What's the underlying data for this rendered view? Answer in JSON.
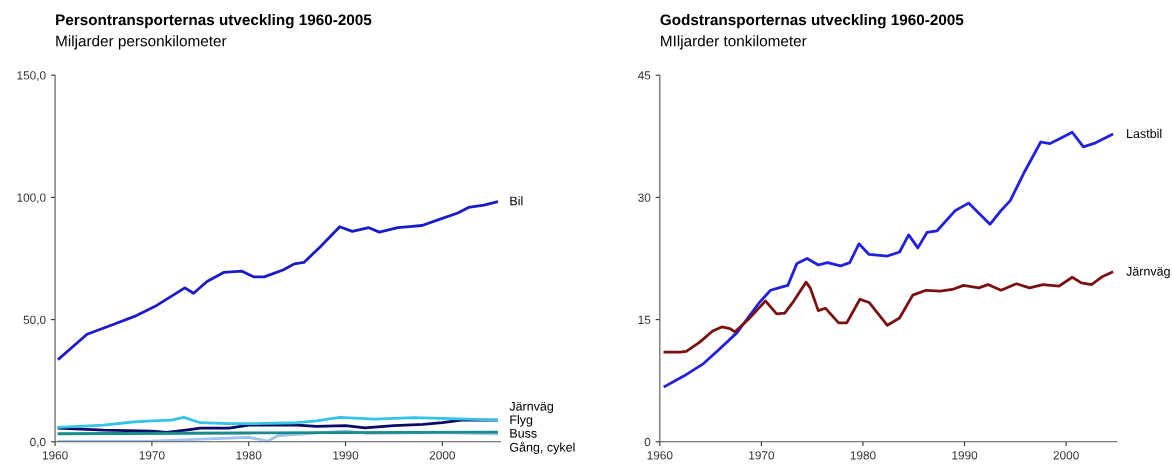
{
  "chart_data": [
    {
      "type": "line",
      "title": "Persontransporternas utveckling 1960-2005",
      "subtitle": "Miljarder personkilometer",
      "xlim": [
        1960,
        2006
      ],
      "xticks": [
        1960,
        1970,
        1980,
        1990,
        2000
      ],
      "ylim": [
        0,
        150
      ],
      "yticks": [
        {
          "value": 0,
          "label": "0,0"
        },
        {
          "value": 50,
          "label": "50,0"
        },
        {
          "value": 100,
          "label": "100,0"
        },
        {
          "value": 150,
          "label": "150,0"
        }
      ],
      "grid": false,
      "legend": false,
      "marker": "none",
      "line_style": "solid",
      "series": [
        {
          "name": "Bil",
          "color": "#1a1ac8",
          "x": [
            1960.4,
            1963.3,
            1966,
            1968.2,
            1970.5,
            1973.4,
            1974.3,
            1975.7,
            1977.4,
            1979.3,
            1980.5,
            1981.6,
            1983.6,
            1984.7,
            1985.7,
            1987.4,
            1989.4,
            1990.7,
            1992.4,
            1993.5,
            1995.4,
            1996.6,
            1997.9,
            1999.7,
            2001.6,
            2002.7,
            2004.3,
            2005.6
          ],
          "values": [
            34,
            44,
            48,
            51.3,
            55.8,
            63,
            60.8,
            65.6,
            69.3,
            69.8,
            67.5,
            67.5,
            70.4,
            72.8,
            73.4,
            79.8,
            88,
            86.1,
            87.6,
            85.8,
            87.6,
            88,
            88.5,
            91,
            93.6,
            95.9,
            96.8,
            98.1
          ]
        },
        {
          "name": "Järnväg",
          "color": "#0a0a66",
          "x": [
            1960.4,
            1965,
            1970,
            1971.5,
            1973.5,
            1975,
            1978,
            1980,
            1985,
            1987,
            1990,
            1992,
            1995,
            1998,
            2000,
            2002,
            2005.6
          ],
          "values": [
            5.6,
            4.8,
            4.4,
            3.9,
            4.8,
            5.6,
            5.6,
            6.8,
            6.8,
            6.3,
            6.6,
            5.7,
            6.6,
            7.1,
            7.8,
            8.9,
            8.9
          ]
        },
        {
          "name": "Flyg",
          "color": "#9cc4ee",
          "x": [
            1960.4,
            1970,
            1976,
            1980,
            1982,
            1983,
            1985,
            1990,
            1992,
            2000,
            2005.6
          ],
          "values": [
            0.2,
            0.3,
            1.2,
            1.8,
            0.3,
            2.5,
            3,
            4.5,
            3.5,
            3.8,
            3.3
          ]
        },
        {
          "name": "Buss",
          "color": "#33c4e8",
          "x": [
            1960.4,
            1965,
            1968,
            1970,
            1972,
            1973.3,
            1975,
            1978,
            1980,
            1985,
            1987,
            1989.4,
            1993,
            1997,
            2000,
            2005.6
          ],
          "values": [
            5.9,
            6.8,
            8.1,
            8.6,
            8.9,
            10,
            7.8,
            7.4,
            7.4,
            7.8,
            8.6,
            10,
            9.3,
            9.9,
            9.6,
            8.9
          ]
        },
        {
          "name": "Gång, cykel",
          "color": "#1a8a8a",
          "x": [
            1960.4,
            1980,
            2005.6
          ],
          "values": [
            3.3,
            3.6,
            4.0
          ]
        }
      ]
    },
    {
      "type": "line",
      "title": "Godstransporternas utveckling 1960-2005",
      "subtitle": "MIljarder tonkilometer",
      "xlim": [
        1960,
        2005
      ],
      "xticks": [
        1960,
        1970,
        1980,
        1990,
        2000
      ],
      "ylim": [
        0,
        45
      ],
      "yticks": [
        0,
        15,
        30,
        45
      ],
      "grid": false,
      "legend": false,
      "marker": "none",
      "line_style": "solid",
      "series": [
        {
          "name": "Lastbil",
          "color": "#2020e0",
          "x": [
            1960.5,
            1962.4,
            1964.3,
            1965.8,
            1967.6,
            1969.8,
            1970.9,
            1971.7,
            1972.6,
            1973.5,
            1974.5,
            1975.6,
            1976.5,
            1977.8,
            1978.7,
            1979.6,
            1980.6,
            1982.4,
            1983.6,
            1984.5,
            1985.4,
            1986.3,
            1987.3,
            1989.1,
            1990.4,
            1992.5,
            1993.6,
            1994.5,
            1995.8,
            1997.5,
            1998.4,
            1999.5,
            2000.6,
            2001.7,
            2002.9,
            2004.5
          ],
          "values": [
            6.8,
            8.1,
            9.6,
            11.3,
            13.4,
            17.1,
            18.6,
            18.9,
            19.2,
            21.9,
            22.5,
            21.7,
            22,
            21.6,
            22,
            24.3,
            23,
            22.8,
            23.3,
            25.4,
            23.8,
            25.7,
            25.9,
            28.4,
            29.3,
            26.7,
            28.4,
            29.6,
            32.9,
            36.8,
            36.6,
            37.3,
            38,
            36.2,
            36.7,
            37.7
          ]
        },
        {
          "name": "Järnväg",
          "color": "#7a1010",
          "x": [
            1960.5,
            1962,
            1962.6,
            1963.9,
            1965.2,
            1966.1,
            1966.9,
            1967.4,
            1968.7,
            1970.4,
            1971.5,
            1972.3,
            1973.2,
            1974.4,
            1974.8,
            1975.6,
            1976.3,
            1977.6,
            1978.4,
            1979.7,
            1980.6,
            1982.4,
            1983.6,
            1984.9,
            1986.2,
            1987.6,
            1988.8,
            1989.9,
            1991.4,
            1992.3,
            1993.6,
            1995.1,
            1996.4,
            1997.7,
            1999.3,
            2000.6,
            2001.5,
            2002.5,
            2003.6,
            2004.5
          ],
          "values": [
            11.0,
            11.0,
            11.1,
            12.2,
            13.6,
            14.1,
            13.9,
            13.5,
            15,
            17.3,
            15.7,
            15.8,
            17.3,
            19.6,
            18.9,
            16.1,
            16.4,
            14.6,
            14.6,
            17.5,
            17.1,
            14.3,
            15.2,
            18,
            18.6,
            18.5,
            18.7,
            19.2,
            18.9,
            19.3,
            18.6,
            19.4,
            18.9,
            19.3,
            19.1,
            20.2,
            19.5,
            19.3,
            20.3,
            20.8
          ]
        }
      ]
    }
  ]
}
